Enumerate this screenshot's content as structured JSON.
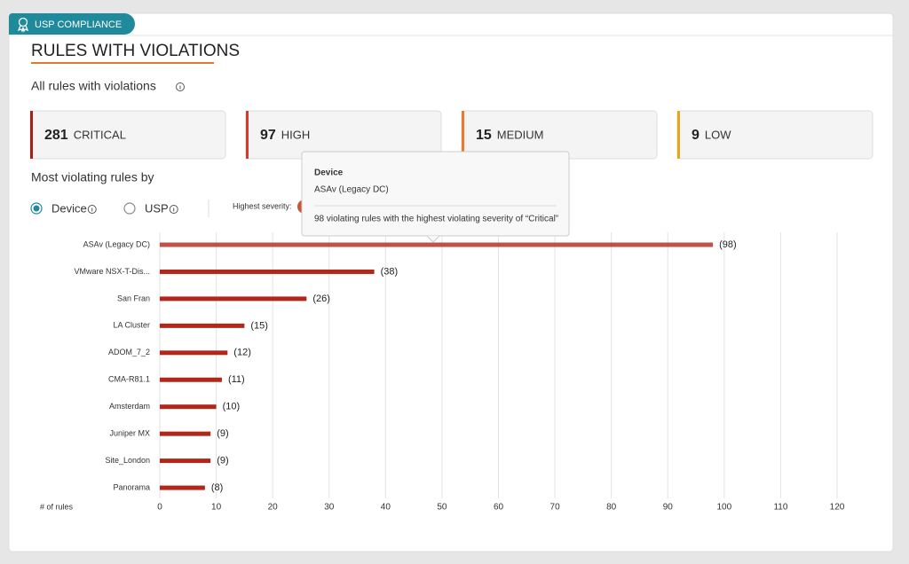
{
  "header": {
    "badge": "USP COMPLIANCE",
    "title": "RULES WITH VIOLATIONS",
    "subtitle": "All rules with violations"
  },
  "summary": [
    {
      "count": 281,
      "label": "CRITICAL",
      "color": "#a61e1e"
    },
    {
      "count": 97,
      "label": "HIGH",
      "color": "#d9382b"
    },
    {
      "count": 15,
      "label": "MEDIUM",
      "color": "#ea7a2c"
    },
    {
      "count": 9,
      "label": "LOW",
      "color": "#eaa51c"
    }
  ],
  "filters": {
    "heading": "Most violating rules by",
    "options": [
      "Device",
      "USP"
    ],
    "selected": "Device",
    "severity_label": "Highest severity:"
  },
  "tooltip": {
    "title": "Device",
    "device": "ASAv (Legacy DC)",
    "text": "98 violating rules with the highest violating severity of “Critical”"
  },
  "chart_data": {
    "type": "bar",
    "orientation": "horizontal",
    "categories": [
      "ASAv (Legacy DC)",
      "VMware NSX-T-Dis...",
      "San Fran",
      "LA Cluster",
      "ADOM_7_2",
      "CMA-R81.1",
      "Amsterdam",
      "Juniper MX",
      "Site_London",
      "Panorama"
    ],
    "values": [
      98,
      38,
      26,
      15,
      12,
      11,
      10,
      9,
      9,
      8
    ],
    "value_labels": [
      "(98)",
      "(38)",
      "(26)",
      "(15)",
      "(12)",
      "(11)",
      "(10)",
      "(9)",
      "(9)",
      "(8)"
    ],
    "color": "#b3271b",
    "x_label": "# of rules",
    "xlim": [
      0,
      120
    ],
    "xticks": [
      0,
      10,
      20,
      30,
      40,
      50,
      60,
      70,
      80,
      90,
      100,
      110,
      120
    ],
    "grid": true
  }
}
